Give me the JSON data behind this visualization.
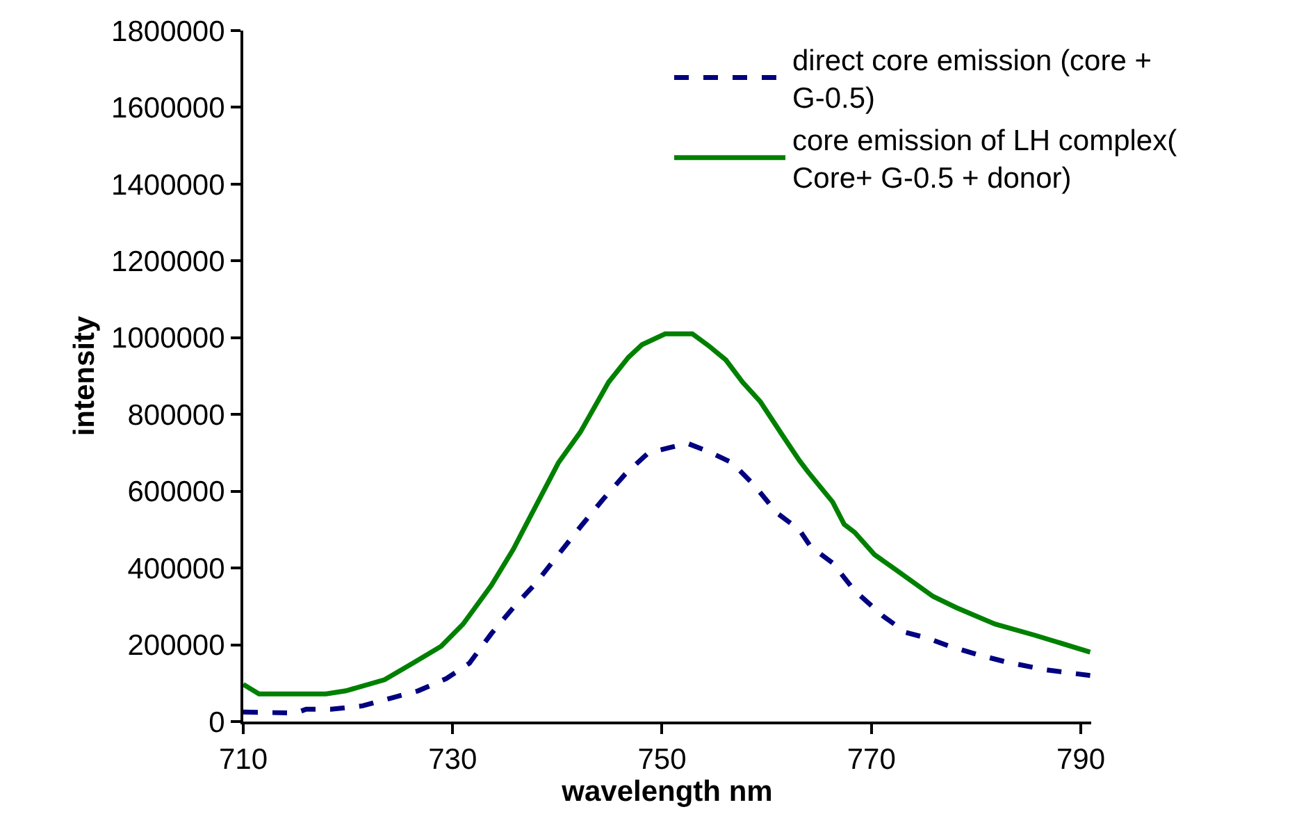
{
  "chart_data": {
    "type": "line",
    "xlabel": "wavelength nm",
    "ylabel": "intensity",
    "xlim": [
      710,
      791
    ],
    "xticks": [
      710,
      730,
      750,
      770,
      790
    ],
    "ylim": [
      0,
      1800000
    ],
    "yticks": [
      0,
      200000,
      400000,
      600000,
      800000,
      1000000,
      1200000,
      1400000,
      1600000,
      1800000
    ],
    "legend": "top right",
    "marker": "none",
    "series": [
      {
        "name": "direct core emission (core + G-0.5)",
        "color": "#000080",
        "line_style": "dashed",
        "x": [
          710,
          715,
          716,
          718.4,
          721.4,
          724.1,
          726.7,
          729.4,
          731.6,
          733.7,
          735.8,
          738,
          740.1,
          742.2,
          744.4,
          746.5,
          748.7,
          750.8,
          752.4,
          754.5,
          756.7,
          758.8,
          761,
          763.1,
          764.2,
          766.3,
          768.4,
          771.1,
          773.3,
          775.4,
          777.5,
          780.2,
          782.9,
          786.6,
          790.9
        ],
        "values": [
          25000,
          22000,
          32000,
          32000,
          41000,
          61000,
          80000,
          112000,
          152000,
          229000,
          297000,
          362000,
          435000,
          507000,
          580000,
          645000,
          700000,
          714000,
          725000,
          703000,
          674000,
          616000,
          543000,
          500000,
          456000,
          413000,
          341000,
          275000,
          232000,
          217000,
          196000,
          174000,
          155000,
          135000,
          120000
        ]
      },
      {
        "name": "core emission of LH complex( Core+ G-0.5 + donor)",
        "color": "#008000",
        "line_style": "solid",
        "x": [
          710,
          711.5,
          717.9,
          719.8,
          723.5,
          726.2,
          728.9,
          731,
          733.7,
          735.8,
          736.9,
          740.1,
          742.2,
          744.9,
          746.8,
          748.1,
          750.3,
          752.9,
          754.5,
          756.1,
          757.7,
          759.4,
          761.5,
          763.1,
          763.9,
          766.3,
          767.4,
          768.4,
          770.3,
          772.2,
          775.9,
          778.1,
          781.8,
          785.6,
          790.9
        ],
        "values": [
          97000,
          72000,
          72000,
          80000,
          109000,
          152000,
          196000,
          254000,
          355000,
          449000,
          507000,
          674000,
          754000,
          884000,
          949000,
          982000,
          1010000,
          1010000,
          978000,
          942000,
          884000,
          833000,
          746000,
          681000,
          652000,
          572000,
          514000,
          493000,
          435000,
          398000,
          326000,
          297000,
          254000,
          225000,
          181000
        ]
      }
    ]
  }
}
